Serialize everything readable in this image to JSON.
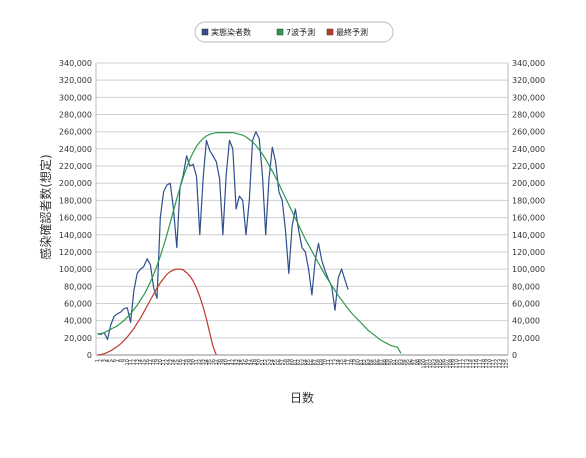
{
  "chart_data": {
    "type": "line",
    "title": "",
    "xlabel": "日数",
    "ylabel": "感染確認者数(想定)",
    "ylim": [
      0,
      340000
    ],
    "ytick_step": 20000,
    "x_count": 125,
    "grid": true,
    "legend_placement": "top-center",
    "series": [
      {
        "name": "実態染者数",
        "color": "#2f4f8f",
        "values": [
          25000,
          24000,
          26000,
          18000,
          35000,
          45000,
          48000,
          50000,
          54000,
          55000,
          38000,
          75000,
          95000,
          100000,
          103000,
          112000,
          105000,
          78000,
          66000,
          160000,
          190000,
          198000,
          200000,
          170000,
          125000,
          195000,
          210000,
          232000,
          220000,
          222000,
          208000,
          140000,
          205000,
          250000,
          238000,
          232000,
          225000,
          205000,
          140000,
          210000,
          250000,
          240000,
          170000,
          185000,
          180000,
          140000,
          180000,
          250000,
          260000,
          252000,
          210000,
          140000,
          205000,
          242000,
          225000,
          190000,
          180000,
          145000,
          95000,
          150000,
          170000,
          145000,
          125000,
          120000,
          100000,
          70000,
          110000,
          130000,
          110000,
          98000,
          88000,
          80000,
          52000,
          90000,
          100000,
          88000,
          76000
        ]
      },
      {
        "name": "7波予測",
        "color": "#2e9a4e",
        "values": [
          24000,
          25000,
          26000,
          28000,
          30000,
          32000,
          34000,
          37000,
          40000,
          44000,
          48000,
          53000,
          58000,
          64000,
          70000,
          77000,
          85000,
          94000,
          104000,
          115000,
          127000,
          140000,
          154000,
          168000,
          182000,
          195000,
          207000,
          218000,
          228000,
          236000,
          243000,
          248000,
          252000,
          255000,
          257000,
          258000,
          259000,
          259000,
          259000,
          259000,
          259000,
          259000,
          258000,
          257000,
          256000,
          254000,
          251000,
          248000,
          244000,
          239000,
          234000,
          228000,
          221000,
          214000,
          207000,
          199000,
          191000,
          183000,
          175000,
          167000,
          159000,
          151000,
          143000,
          135000,
          128000,
          121000,
          114000,
          107000,
          100000,
          93000,
          87000,
          81000,
          75000,
          69000,
          64000,
          59000,
          54000,
          49000,
          45000,
          41000,
          37000,
          33000,
          29000,
          26000,
          23000,
          20000,
          17000,
          15000,
          13000,
          11000,
          10000,
          9000,
          2000
        ]
      },
      {
        "name": "最終予測",
        "color": "#c0392b",
        "values": [
          0,
          500,
          1500,
          3000,
          5000,
          7500,
          10000,
          13000,
          17000,
          21000,
          26000,
          31000,
          37000,
          43000,
          50000,
          57000,
          64000,
          71000,
          78000,
          84000,
          89000,
          94000,
          97000,
          99000,
          100000,
          100000,
          99000,
          96000,
          92000,
          86000,
          78000,
          68000,
          56000,
          42000,
          26000,
          10000,
          0
        ]
      }
    ]
  }
}
